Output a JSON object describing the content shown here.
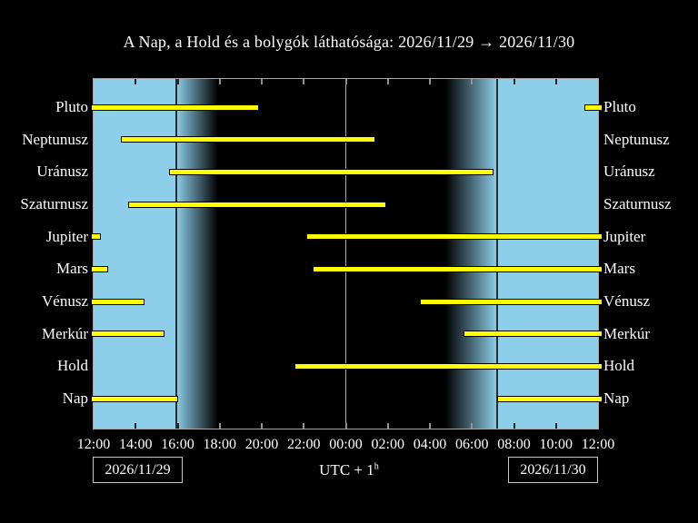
{
  "title": "A Nap, a Hold és a bolygók láthatósága: 2026/11/29 → 2026/11/30",
  "footer": {
    "date_start": "2026/11/29",
    "date_end": "2026/11/30",
    "timezone_label": "UTC + 1",
    "timezone_superscript": "h"
  },
  "chart_data": {
    "type": "bar",
    "subtype": "horizontal-visibility-timeline",
    "title": "A Nap, a Hold és a bolygók láthatósága: 2026/11/29 → 2026/11/30",
    "x_axis": {
      "hours_total": 24,
      "tick_interval_hours": 2,
      "tick_labels": [
        "12:00",
        "14:00",
        "16:00",
        "18:00",
        "20:00",
        "22:00",
        "00:00",
        "02:00",
        "04:00",
        "06:00",
        "08:00",
        "10:00",
        "12:00"
      ]
    },
    "rows": [
      {
        "id": "pluto",
        "label": "Pluto",
        "segments_hours_after_noon": [
          [
            0,
            7.78
          ],
          [
            23.35,
            24
          ]
        ]
      },
      {
        "id": "neptunusz",
        "label": "Neptunusz",
        "segments_hours_after_noon": [
          [
            1.3,
            13.32
          ]
        ]
      },
      {
        "id": "uranusz",
        "label": "Uránusz",
        "segments_hours_after_noon": [
          [
            3.59,
            18.94
          ]
        ]
      },
      {
        "id": "szaturnusz",
        "label": "Szaturnusz",
        "segments_hours_after_noon": [
          [
            1.64,
            13.84
          ]
        ]
      },
      {
        "id": "jupiter",
        "label": "Jupiter",
        "segments_hours_after_noon": [
          [
            0,
            0.25
          ],
          [
            10.12,
            24
          ]
        ]
      },
      {
        "id": "mars",
        "label": "Mars",
        "segments_hours_after_noon": [
          [
            0,
            0.6
          ],
          [
            10.42,
            24
          ]
        ]
      },
      {
        "id": "venusz",
        "label": "Vénusz",
        "segments_hours_after_noon": [
          [
            0,
            2.34
          ],
          [
            15.52,
            24
          ]
        ]
      },
      {
        "id": "merkur",
        "label": "Merkúr",
        "segments_hours_after_noon": [
          [
            0,
            3.29
          ],
          [
            17.6,
            24
          ]
        ]
      },
      {
        "id": "hold",
        "label": "Hold",
        "segments_hours_after_noon": [
          [
            9.56,
            24
          ]
        ]
      },
      {
        "id": "nap",
        "label": "Nap",
        "segments_hours_after_noon": [
          [
            0,
            3.93
          ],
          [
            19.22,
            24
          ]
        ]
      }
    ],
    "sky_background": {
      "daylight_end_hour": 3.93,
      "evening_twilight_end_hour": 5.92,
      "morning_twilight_start_hour": 16.73,
      "daylight_start_hour": 19.22,
      "midnight_hour": 12
    },
    "colors": {
      "daylight": "#8DCFEA",
      "night": "#000000",
      "bar": "#FFFF00",
      "bar_outline": "#000000",
      "frame": "#A8A8A8",
      "midnight_line": "#AAAAAA",
      "sun_event_line": "#2B2B2B",
      "tick_on_day": "#222222",
      "tick_on_night": "#909090",
      "text": "#FFFFFF"
    }
  }
}
